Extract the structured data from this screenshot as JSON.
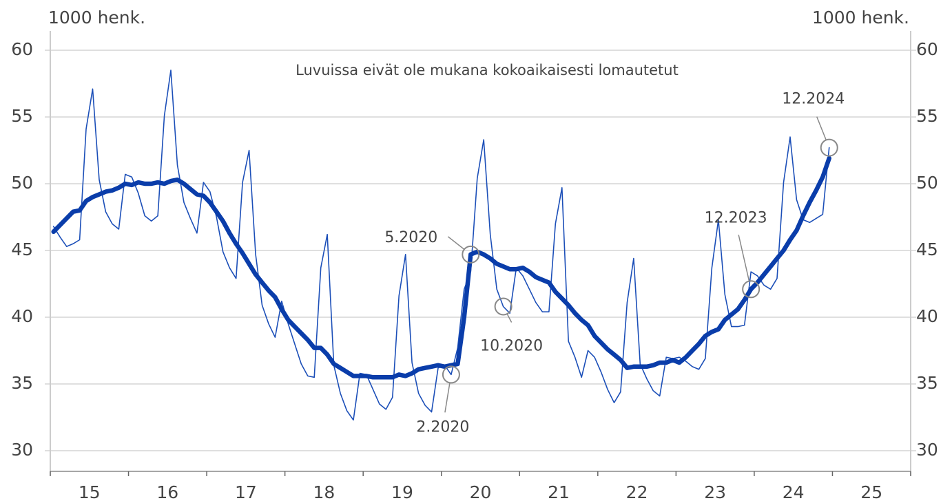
{
  "chart_data": {
    "type": "line",
    "ylabel": "1000 henk.",
    "y2label": "1000 henk.",
    "note": "Luvuissa eivät ole mukana kokoaikaisesti lomautetut",
    "x": [
      "2015-01",
      "2015-02",
      "2015-03",
      "2015-04",
      "2015-05",
      "2015-06",
      "2015-07",
      "2015-08",
      "2015-09",
      "2015-10",
      "2015-11",
      "2015-12",
      "2016-01",
      "2016-02",
      "2016-03",
      "2016-04",
      "2016-05",
      "2016-06",
      "2016-07",
      "2016-08",
      "2016-09",
      "2016-10",
      "2016-11",
      "2016-12",
      "2017-01",
      "2017-02",
      "2017-03",
      "2017-04",
      "2017-05",
      "2017-06",
      "2017-07",
      "2017-08",
      "2017-09",
      "2017-10",
      "2017-11",
      "2017-12",
      "2018-01",
      "2018-02",
      "2018-03",
      "2018-04",
      "2018-05",
      "2018-06",
      "2018-07",
      "2018-08",
      "2018-09",
      "2018-10",
      "2018-11",
      "2018-12",
      "2019-01",
      "2019-02",
      "2019-03",
      "2019-04",
      "2019-05",
      "2019-06",
      "2019-07",
      "2019-08",
      "2019-09",
      "2019-10",
      "2019-11",
      "2019-12",
      "2020-01",
      "2020-02",
      "2020-03",
      "2020-04",
      "2020-05",
      "2020-06",
      "2020-07",
      "2020-08",
      "2020-09",
      "2020-10",
      "2020-11",
      "2020-12",
      "2021-01",
      "2021-02",
      "2021-03",
      "2021-04",
      "2021-05",
      "2021-06",
      "2021-07",
      "2021-08",
      "2021-09",
      "2021-10",
      "2021-11",
      "2021-12",
      "2022-01",
      "2022-02",
      "2022-03",
      "2022-04",
      "2022-05",
      "2022-06",
      "2022-07",
      "2022-08",
      "2022-09",
      "2022-10",
      "2022-11",
      "2022-12",
      "2023-01",
      "2023-02",
      "2023-03",
      "2023-04",
      "2023-05",
      "2023-06",
      "2023-07",
      "2023-08",
      "2023-09",
      "2023-10",
      "2023-11",
      "2023-12",
      "2024-01",
      "2024-02",
      "2024-03",
      "2024-04",
      "2024-05",
      "2024-06",
      "2024-07",
      "2024-08",
      "2024-09",
      "2024-10",
      "2024-11",
      "2024-12"
    ],
    "series": [
      {
        "color": "#1c4fb8",
        "values": [
          46.8,
          46.0,
          45.3,
          45.5,
          45.8,
          54.1,
          57.1,
          50.3,
          47.9,
          47.0,
          46.6,
          50.7,
          50.5,
          49.3,
          47.6,
          47.2,
          47.6,
          55.1,
          58.5,
          51.4,
          48.6,
          47.4,
          46.3,
          50.1,
          49.4,
          47.5,
          44.9,
          43.7,
          42.9,
          50.1,
          52.5,
          44.7,
          40.9,
          39.5,
          38.5,
          41.2,
          39.5,
          38.0,
          36.5,
          35.6,
          35.5,
          43.7,
          46.2,
          36.4,
          34.3,
          33.0,
          32.3,
          35.8,
          35.7,
          34.6,
          33.5,
          33.1,
          34.0,
          41.6,
          44.7,
          36.6,
          34.3,
          33.4,
          32.9,
          36.2,
          36.4,
          35.7,
          37.7,
          42.1,
          43.4,
          50.4,
          53.3,
          46.2,
          42.1,
          40.8,
          40.3,
          43.7,
          43.1,
          42.1,
          41.1,
          40.4,
          40.4,
          47.0,
          49.7,
          38.2,
          37.0,
          35.5,
          37.5,
          37.0,
          35.9,
          34.6,
          33.6,
          34.4,
          41.1,
          44.4,
          36.5,
          35.4,
          34.5,
          34.1,
          37.0,
          36.9,
          37.0,
          36.7,
          36.3,
          36.1,
          36.9,
          43.7,
          47.3,
          41.7,
          39.3,
          39.3,
          39.4,
          43.4,
          43.1,
          42.4,
          42.1,
          42.9,
          50.1,
          53.5,
          48.8,
          47.3,
          47.1,
          47.4,
          47.7,
          52.7
        ]
      },
      {
        "color": "#0a3daa",
        "values": [
          46.4,
          46.9,
          47.4,
          47.9,
          48.0,
          48.7,
          49.0,
          49.2,
          49.4,
          49.5,
          49.7,
          50.0,
          49.9,
          50.1,
          50.0,
          50.0,
          50.1,
          50.0,
          50.2,
          50.3,
          50.0,
          49.6,
          49.2,
          49.1,
          48.6,
          47.9,
          47.2,
          46.3,
          45.5,
          44.8,
          44.0,
          43.2,
          42.6,
          42.0,
          41.5,
          40.6,
          39.8,
          39.3,
          38.8,
          38.3,
          37.7,
          37.7,
          37.2,
          36.5,
          36.2,
          35.9,
          35.6,
          35.6,
          35.6,
          35.5,
          35.5,
          35.5,
          35.5,
          35.7,
          35.6,
          35.8,
          36.1,
          36.2,
          36.3,
          36.4,
          36.3,
          36.4,
          36.5,
          40.0,
          44.7,
          44.9,
          44.7,
          44.4,
          44.0,
          43.8,
          43.6,
          43.6,
          43.7,
          43.4,
          43.0,
          42.8,
          42.6,
          41.9,
          41.4,
          40.9,
          40.3,
          39.8,
          39.4,
          38.6,
          38.1,
          37.6,
          37.2,
          36.8,
          36.2,
          36.3,
          36.3,
          36.3,
          36.4,
          36.6,
          36.6,
          36.8,
          36.6,
          37.0,
          37.5,
          38.0,
          38.6,
          38.9,
          39.1,
          39.8,
          40.2,
          40.6,
          41.3,
          42.1,
          42.6,
          43.2,
          43.8,
          44.4,
          45.0,
          45.8,
          46.5,
          47.6,
          48.6,
          49.5,
          50.5,
          51.9
        ]
      }
    ],
    "annotations": [
      {
        "text": "2.2020",
        "x": "2020-02"
      },
      {
        "text": "5.2020",
        "x": "2020-05"
      },
      {
        "text": "10.2020",
        "x": "2020-10"
      },
      {
        "text": "12.2023",
        "x": "2023-12"
      },
      {
        "text": "12.2024",
        "x": "2024-12"
      }
    ],
    "xlim": [
      "2015-01",
      "2025-12"
    ],
    "xticks": [
      {
        "value": "2015-01",
        "label": "15"
      },
      {
        "value": "2016-01",
        "label": "16"
      },
      {
        "value": "2017-01",
        "label": "17"
      },
      {
        "value": "2018-01",
        "label": "18"
      },
      {
        "value": "2019-01",
        "label": "19"
      },
      {
        "value": "2020-01",
        "label": "20"
      },
      {
        "value": "2021-01",
        "label": "21"
      },
      {
        "value": "2022-01",
        "label": "22"
      },
      {
        "value": "2023-01",
        "label": "23"
      },
      {
        "value": "2024-01",
        "label": "24"
      },
      {
        "value": "2025-01",
        "label": "25"
      }
    ],
    "ylim": [
      30,
      60
    ],
    "yticks": [
      30,
      35,
      40,
      45,
      50,
      55,
      60
    ],
    "y2lim": [
      30,
      60
    ],
    "y2ticks": [
      30,
      35,
      40,
      45,
      50,
      55,
      60
    ],
    "grid": true
  }
}
